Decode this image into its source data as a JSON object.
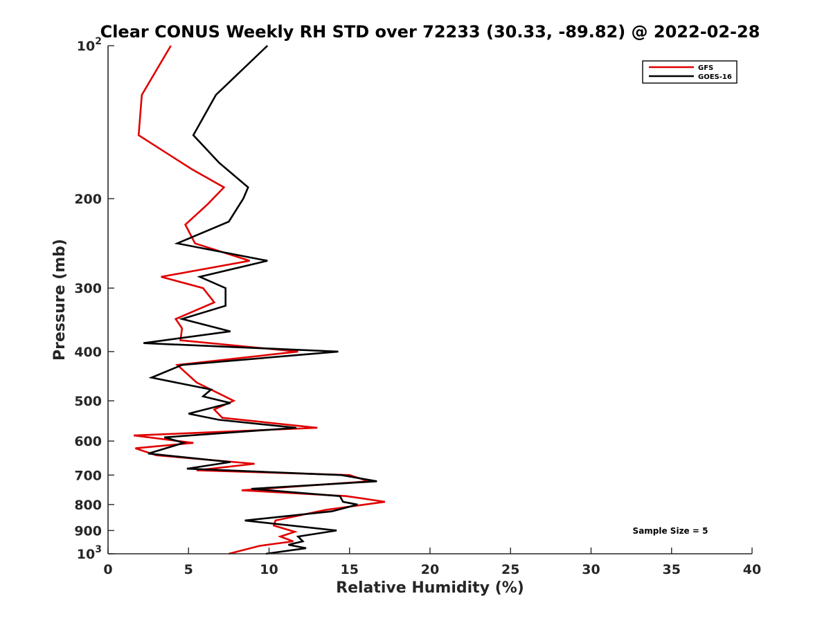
{
  "chart_data": {
    "type": "line",
    "title": "Clear CONUS Weekly RH STD over 72233 (30.33, -89.82) @ 2022-02-28",
    "xlabel": "Relative Humidity (%)",
    "ylabel": "Pressure (mb)",
    "xlim": [
      0,
      40
    ],
    "ylim": [
      100,
      1000
    ],
    "y_scale": "log",
    "y_reversed": true,
    "grid": false,
    "legend_position": "top-right",
    "x_ticks": [
      0,
      5,
      10,
      15,
      20,
      25,
      30,
      35,
      40
    ],
    "x_tick_labels": [
      "0",
      "5",
      "10",
      "15",
      "20",
      "25",
      "30",
      "35",
      "40"
    ],
    "y_ticks": [
      100,
      200,
      300,
      400,
      500,
      600,
      700,
      800,
      900,
      1000
    ],
    "y_tick_labels": [
      {
        "base": "10",
        "exp": "2"
      },
      {
        "base": "200",
        "exp": ""
      },
      {
        "base": "300",
        "exp": ""
      },
      {
        "base": "400",
        "exp": ""
      },
      {
        "base": "500",
        "exp": ""
      },
      {
        "base": "600",
        "exp": ""
      },
      {
        "base": "700",
        "exp": ""
      },
      {
        "base": "800",
        "exp": ""
      },
      {
        "base": "900",
        "exp": ""
      },
      {
        "base": "10",
        "exp": "3"
      }
    ],
    "annotation": "Sample Size = 5",
    "series": [
      {
        "name": "GFS",
        "color": "#e00000",
        "points": [
          [
            3.9,
            100
          ],
          [
            2.1,
            125
          ],
          [
            1.9,
            150
          ],
          [
            5.2,
            175
          ],
          [
            7.2,
            190
          ],
          [
            6.2,
            205
          ],
          [
            4.8,
            225
          ],
          [
            5.4,
            245
          ],
          [
            8.8,
            265
          ],
          [
            3.3,
            285
          ],
          [
            5.9,
            300
          ],
          [
            6.6,
            320
          ],
          [
            4.2,
            345
          ],
          [
            4.6,
            360
          ],
          [
            4.5,
            380
          ],
          [
            11.8,
            400
          ],
          [
            4.3,
            425
          ],
          [
            5.5,
            460
          ],
          [
            7.8,
            500
          ],
          [
            6.6,
            520
          ],
          [
            7.1,
            540
          ],
          [
            13.0,
            565
          ],
          [
            1.6,
            585
          ],
          [
            5.3,
            605
          ],
          [
            1.7,
            620
          ],
          [
            3.0,
            640
          ],
          [
            9.1,
            665
          ],
          [
            5.5,
            685
          ],
          [
            15.0,
            700
          ],
          [
            16.2,
            720
          ],
          [
            8.3,
            750
          ],
          [
            14.8,
            770
          ],
          [
            17.2,
            790
          ],
          [
            13.5,
            820
          ],
          [
            10.4,
            860
          ],
          [
            10.3,
            880
          ],
          [
            11.6,
            905
          ],
          [
            10.7,
            925
          ],
          [
            11.5,
            945
          ],
          [
            9.4,
            965
          ],
          [
            7.5,
            1000
          ]
        ]
      },
      {
        "name": "GOES-16",
        "color": "#000000",
        "points": [
          [
            9.9,
            100
          ],
          [
            6.7,
            125
          ],
          [
            5.3,
            150
          ],
          [
            6.9,
            170
          ],
          [
            8.7,
            190
          ],
          [
            8.4,
            200
          ],
          [
            7.5,
            222
          ],
          [
            4.3,
            245
          ],
          [
            9.9,
            265
          ],
          [
            5.7,
            285
          ],
          [
            7.3,
            300
          ],
          [
            7.3,
            325
          ],
          [
            4.6,
            345
          ],
          [
            7.6,
            365
          ],
          [
            2.2,
            385
          ],
          [
            14.3,
            400
          ],
          [
            4.6,
            425
          ],
          [
            2.7,
            450
          ],
          [
            6.4,
            475
          ],
          [
            5.9,
            490
          ],
          [
            7.6,
            505
          ],
          [
            5.0,
            530
          ],
          [
            6.9,
            545
          ],
          [
            11.7,
            565
          ],
          [
            3.5,
            590
          ],
          [
            4.7,
            605
          ],
          [
            2.5,
            635
          ],
          [
            7.6,
            660
          ],
          [
            4.9,
            680
          ],
          [
            14.5,
            700
          ],
          [
            16.7,
            720
          ],
          [
            8.9,
            745
          ],
          [
            14.4,
            770
          ],
          [
            14.6,
            790
          ],
          [
            15.5,
            800
          ],
          [
            13.9,
            825
          ],
          [
            8.5,
            860
          ],
          [
            14.2,
            900
          ],
          [
            11.8,
            925
          ],
          [
            12.1,
            945
          ],
          [
            11.2,
            960
          ],
          [
            12.3,
            975
          ],
          [
            9.8,
            1000
          ]
        ]
      }
    ]
  }
}
